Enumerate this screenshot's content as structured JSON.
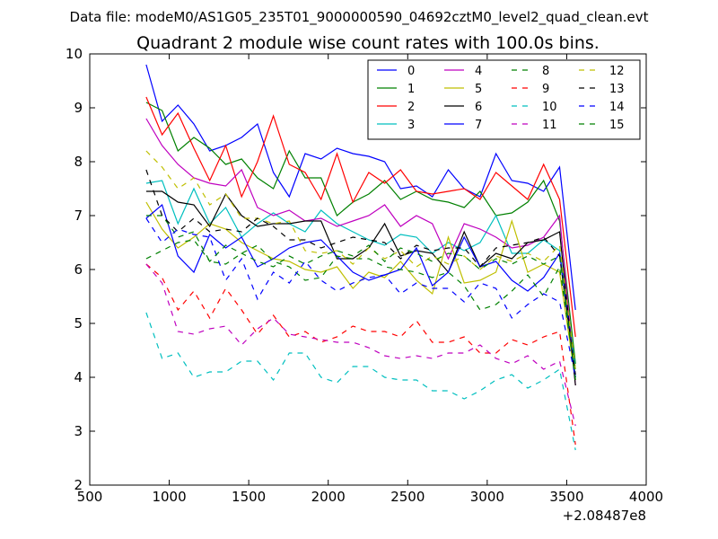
{
  "chart_data": {
    "type": "line",
    "suptitle": "Data file: modeM0/AS1G05_235T01_9000000590_04692cztM0_level2_quad_clean.evt",
    "title": "Quadrant 2 module wise count rates with 100.0s bins.",
    "xlabel": "",
    "ylabel": "",
    "x_offset_label": "+2.08487e8",
    "xlim": [
      500,
      4000
    ],
    "ylim": [
      2,
      10
    ],
    "xticks": [
      500,
      1000,
      1500,
      2000,
      2500,
      3000,
      3500,
      4000
    ],
    "yticks": [
      2,
      3,
      4,
      5,
      6,
      7,
      8,
      9,
      10
    ],
    "grid": false,
    "legend_position": "top-right",
    "legend_columns": 4,
    "x": [
      855,
      955,
      1055,
      1155,
      1255,
      1355,
      1455,
      1555,
      1655,
      1755,
      1855,
      1955,
      2055,
      2155,
      2255,
      2355,
      2455,
      2555,
      2655,
      2755,
      2855,
      2955,
      3055,
      3155,
      3255,
      3355,
      3455,
      3555
    ],
    "series": [
      {
        "name": "0",
        "color": "#0000ff",
        "dash": "solid",
        "values": [
          9.8,
          8.75,
          9.05,
          8.7,
          8.2,
          8.3,
          8.45,
          8.7,
          7.8,
          7.35,
          8.15,
          8.05,
          8.25,
          8.15,
          8.1,
          8.0,
          7.5,
          7.55,
          7.35,
          7.85,
          7.5,
          7.35,
          8.15,
          7.65,
          7.6,
          7.45,
          7.9,
          5.25
        ]
      },
      {
        "name": "1",
        "color": "#008000",
        "dash": "solid",
        "values": [
          9.1,
          8.95,
          8.2,
          8.45,
          8.25,
          7.95,
          8.05,
          7.7,
          7.5,
          8.2,
          7.7,
          7.7,
          7.0,
          7.25,
          7.4,
          7.65,
          7.3,
          7.45,
          7.3,
          7.25,
          7.15,
          7.45,
          7.0,
          7.05,
          7.25,
          7.65,
          6.9,
          4.25
        ]
      },
      {
        "name": "2",
        "color": "#ff0000",
        "dash": "solid",
        "values": [
          9.2,
          8.5,
          8.9,
          8.25,
          7.65,
          8.3,
          7.35,
          8.0,
          8.85,
          7.95,
          7.8,
          7.3,
          8.15,
          7.25,
          7.8,
          7.6,
          7.85,
          7.45,
          7.4,
          7.45,
          7.5,
          7.3,
          7.8,
          7.55,
          7.3,
          7.95,
          7.3,
          4.75
        ]
      },
      {
        "name": "3",
        "color": "#00bfbf",
        "dash": "solid",
        "values": [
          7.6,
          7.65,
          6.85,
          7.5,
          6.85,
          7.15,
          6.6,
          6.85,
          7.05,
          6.85,
          6.7,
          7.1,
          6.85,
          6.7,
          6.55,
          6.45,
          6.65,
          6.6,
          6.3,
          6.5,
          6.35,
          6.5,
          7.0,
          6.3,
          6.3,
          6.55,
          6.35,
          4.15
        ]
      },
      {
        "name": "4",
        "color": "#bf00bf",
        "dash": "solid",
        "values": [
          8.8,
          8.3,
          7.95,
          7.7,
          7.6,
          7.55,
          7.85,
          7.15,
          7.0,
          7.1,
          6.9,
          6.95,
          6.8,
          6.9,
          7.0,
          7.2,
          6.8,
          7.0,
          6.85,
          6.2,
          6.85,
          6.75,
          6.6,
          6.4,
          6.45,
          6.6,
          7.0,
          3.85
        ]
      },
      {
        "name": "5",
        "color": "#bfbf00",
        "dash": "solid",
        "values": [
          7.25,
          6.75,
          6.4,
          6.6,
          6.85,
          6.75,
          6.5,
          6.35,
          6.2,
          6.15,
          6.0,
          5.95,
          6.05,
          5.65,
          5.95,
          5.85,
          6.15,
          5.8,
          5.55,
          6.6,
          5.75,
          5.8,
          5.95,
          6.9,
          5.95,
          6.1,
          5.95,
          3.95
        ]
      },
      {
        "name": "6",
        "color": "#000000",
        "dash": "solid",
        "values": [
          7.45,
          7.45,
          7.25,
          7.2,
          6.8,
          7.4,
          7.0,
          6.8,
          6.85,
          6.85,
          6.9,
          6.9,
          6.2,
          6.2,
          6.4,
          6.85,
          6.25,
          6.35,
          6.3,
          5.95,
          6.7,
          6.05,
          6.3,
          6.2,
          6.5,
          6.55,
          6.7,
          3.85
        ]
      },
      {
        "name": "7",
        "color": "#0000ff",
        "dash": "solid",
        "values": [
          6.95,
          7.2,
          6.25,
          5.95,
          6.65,
          6.4,
          6.6,
          6.05,
          6.2,
          6.4,
          6.5,
          6.55,
          6.25,
          5.95,
          5.8,
          5.9,
          6.0,
          6.4,
          5.7,
          5.95,
          6.6,
          6.05,
          6.15,
          5.8,
          5.6,
          5.85,
          6.3,
          4.0
        ]
      },
      {
        "name": "8",
        "color": "#008000",
        "dash": "dashed",
        "values": [
          7.0,
          7.0,
          6.6,
          6.7,
          6.15,
          6.1,
          6.3,
          6.45,
          6.15,
          6.05,
          5.8,
          5.85,
          6.25,
          6.2,
          6.2,
          6.05,
          6.0,
          5.95,
          5.85,
          5.95,
          5.7,
          5.25,
          5.35,
          5.6,
          5.9,
          5.5,
          6.05,
          4.0
        ]
      },
      {
        "name": "9",
        "color": "#ff0000",
        "dash": "dashed",
        "values": [
          6.1,
          5.85,
          5.25,
          5.6,
          5.1,
          5.65,
          5.25,
          4.8,
          5.15,
          4.75,
          4.85,
          4.65,
          4.75,
          4.95,
          4.85,
          4.85,
          4.75,
          5.05,
          4.65,
          4.65,
          4.75,
          4.45,
          4.45,
          4.7,
          4.6,
          4.75,
          4.85,
          2.75
        ]
      },
      {
        "name": "10",
        "color": "#00bfbf",
        "dash": "dashed",
        "values": [
          5.2,
          4.35,
          4.45,
          4.0,
          4.1,
          4.1,
          4.3,
          4.3,
          3.95,
          4.45,
          4.45,
          4.0,
          3.9,
          4.2,
          4.2,
          4.0,
          3.95,
          3.95,
          3.75,
          3.75,
          3.6,
          3.75,
          3.95,
          4.05,
          3.8,
          3.95,
          4.15,
          2.65
        ]
      },
      {
        "name": "11",
        "color": "#bf00bf",
        "dash": "dashed",
        "values": [
          6.1,
          5.75,
          4.85,
          4.8,
          4.9,
          4.95,
          4.6,
          4.9,
          5.1,
          4.8,
          4.75,
          4.7,
          4.65,
          4.65,
          4.55,
          4.4,
          4.35,
          4.4,
          4.35,
          4.45,
          4.45,
          4.6,
          4.35,
          4.25,
          4.4,
          4.15,
          4.3,
          3.1
        ]
      },
      {
        "name": "12",
        "color": "#bfbf00",
        "dash": "dashed",
        "values": [
          8.2,
          7.9,
          7.5,
          7.7,
          7.2,
          7.4,
          6.95,
          6.95,
          6.85,
          6.9,
          6.35,
          6.3,
          6.35,
          6.1,
          6.4,
          6.2,
          6.35,
          6.05,
          6.25,
          6.1,
          6.25,
          6.0,
          6.25,
          6.15,
          6.3,
          6.15,
          6.45,
          4.15
        ]
      },
      {
        "name": "13",
        "color": "#000000",
        "dash": "dashed",
        "values": [
          7.85,
          7.0,
          6.7,
          6.95,
          6.7,
          6.75,
          6.7,
          6.95,
          6.8,
          6.55,
          6.55,
          6.4,
          6.5,
          6.6,
          6.55,
          6.5,
          6.2,
          6.45,
          6.35,
          6.4,
          6.4,
          6.05,
          6.4,
          6.45,
          6.5,
          6.6,
          6.25,
          4.05
        ]
      },
      {
        "name": "14",
        "color": "#0000ff",
        "dash": "dashed",
        "values": [
          6.95,
          6.5,
          6.75,
          6.65,
          6.6,
          5.8,
          6.2,
          5.45,
          5.95,
          5.75,
          6.15,
          5.8,
          5.6,
          5.75,
          5.85,
          5.9,
          5.55,
          5.75,
          5.65,
          5.65,
          5.4,
          5.75,
          5.65,
          5.1,
          5.35,
          5.55,
          5.4,
          4.0
        ]
      },
      {
        "name": "15",
        "color": "#008000",
        "dash": "dashed",
        "values": [
          6.2,
          6.35,
          6.5,
          6.55,
          6.15,
          6.45,
          6.3,
          6.15,
          6.05,
          6.25,
          6.1,
          6.25,
          6.35,
          6.25,
          6.45,
          6.15,
          6.4,
          6.3,
          6.15,
          6.3,
          6.25,
          6.0,
          6.2,
          6.1,
          6.25,
          6.1,
          6.25,
          3.95
        ]
      }
    ]
  }
}
